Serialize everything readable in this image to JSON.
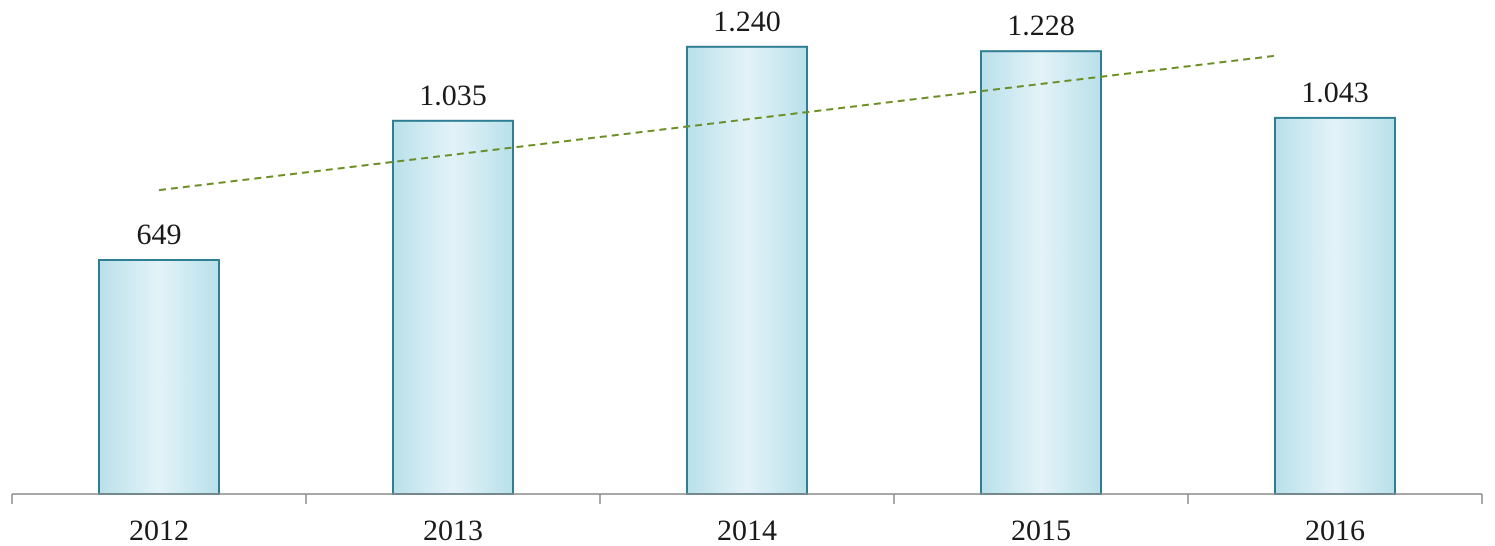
{
  "chart_data": {
    "type": "bar",
    "title": "",
    "xlabel": "",
    "ylabel": "",
    "categories": [
      "2012",
      "2013",
      "2014",
      "2015",
      "2016"
    ],
    "values": [
      649,
      1035,
      1240,
      1228,
      1043
    ],
    "data_labels": [
      "649",
      "1.035",
      "1.240",
      "1.228",
      "1.043"
    ],
    "ylim": [
      0,
      1320
    ],
    "grid": false,
    "legend": "none",
    "trendline": {
      "type": "linear",
      "style": "dashed"
    },
    "colors": {
      "bar_fill_edge": "#b9e0ea",
      "bar_fill_center": "#e3f3f8",
      "bar_stroke": "#2f7f94",
      "trendline": "#6b8e23",
      "axis": "#8c8c8c"
    }
  }
}
